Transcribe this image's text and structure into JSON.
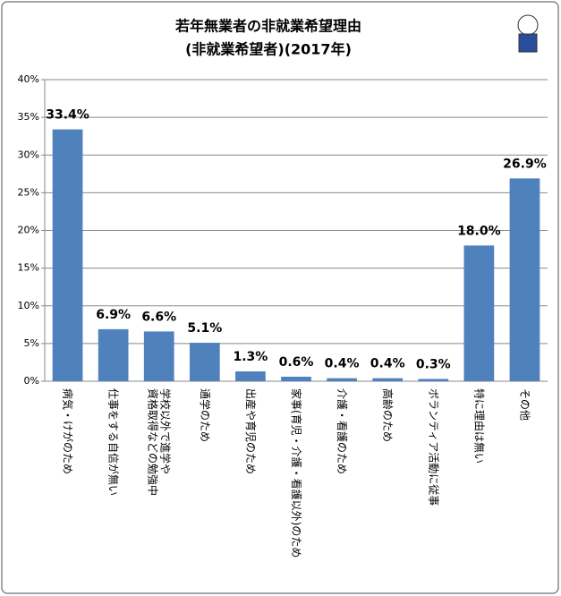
{
  "chart_data": {
    "type": "bar",
    "title": "若年無業者の非就業希望理由",
    "subtitle": "(非就業希望者)(2017年)",
    "categories": [
      "病気・けがのため",
      "仕事をする自信が無い",
      "学校以外で進学や\n資格取得などの勉強中",
      "通学のため",
      "出産や育児のため",
      "家事(育児・介護・看護以外)のため",
      "介護・看護のため",
      "高齢のため",
      "ボランティア活動に従事",
      "特に理由は無い",
      "その他"
    ],
    "values": [
      33.4,
      6.9,
      6.6,
      5.1,
      1.3,
      0.6,
      0.4,
      0.4,
      0.3,
      18.0,
      26.9
    ],
    "value_labels": [
      "33.4%",
      "6.9%",
      "6.6%",
      "5.1%",
      "1.3%",
      "0.6%",
      "0.4%",
      "0.4%",
      "0.3%",
      "18.0%",
      "26.9%"
    ],
    "color": "#4f81bd",
    "ylim": [
      0,
      40
    ],
    "yticks": [
      {
        "value": 0,
        "label": "0%"
      },
      {
        "value": 5,
        "label": "5%"
      },
      {
        "value": 10,
        "label": "10%"
      },
      {
        "value": 15,
        "label": "15%"
      },
      {
        "value": 20,
        "label": "20%"
      },
      {
        "value": 25,
        "label": "25%"
      },
      {
        "value": 30,
        "label": "30%"
      },
      {
        "value": 35,
        "label": "35%"
      },
      {
        "value": 40,
        "label": "40%"
      }
    ],
    "grid": true
  }
}
